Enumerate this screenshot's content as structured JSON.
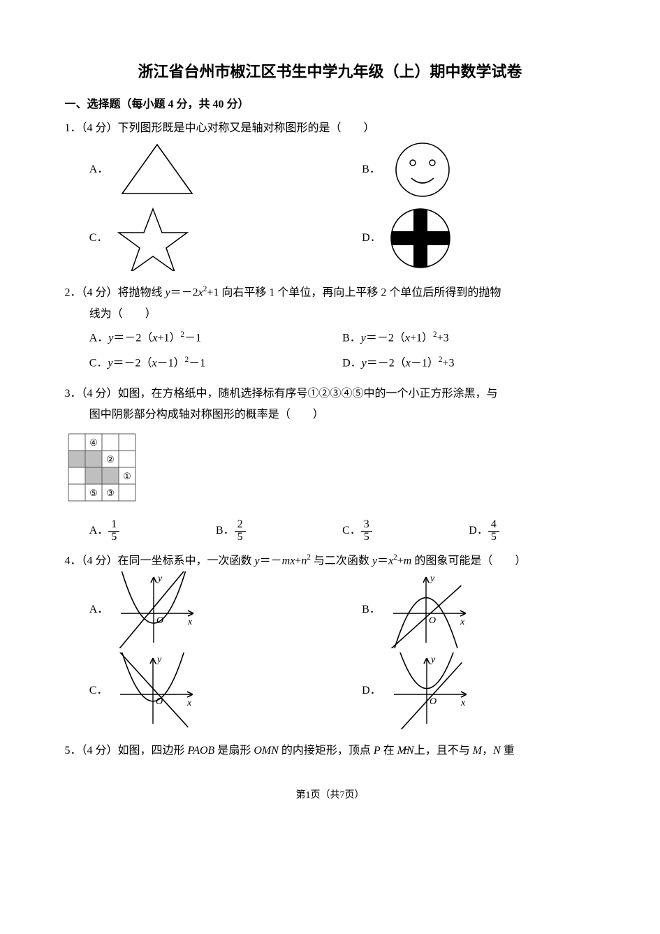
{
  "page": {
    "title": "浙江省台州市椒江区书生中学九年级（上）期中数学试卷",
    "section1_label": "一、选择题（每小题 4 分，共 40 分）",
    "footer": "第1页（共7页）"
  },
  "q1": {
    "stem": "1．（4 分）下列图形既是中心对称又是轴对称图形的是（　　）",
    "A": "A．",
    "B": "B．",
    "C": "C．",
    "D": "D．",
    "fig_size": 100,
    "figA": {
      "type": "triangle",
      "stroke": "#000"
    },
    "figB": {
      "type": "smiley",
      "stroke": "#000"
    },
    "figC": {
      "type": "star",
      "stroke": "#000"
    },
    "figD": {
      "type": "circle-cross",
      "stroke": "#000",
      "fill": "#000"
    }
  },
  "q2": {
    "stem_a": "2．（4 分）将抛物线 ",
    "stem_expr": "y＝－2x²+1",
    "stem_b": " 向右平移 1 个单位，再向上平移 2 个单位后所得到的抛物",
    "stem_c": "线为（　　）",
    "optA": "A．y＝－2（x+1）²－1",
    "optB": "B．y＝－2（x+1）²+3",
    "optC": "C．y＝－2（x－1）²－1",
    "optD": "D．y＝－2（x－1）²+3"
  },
  "q3": {
    "stem_a": "3．（4 分）如图，在方格纸中，随机选择标有序号①②③④⑤中的一个小正方形涂黑，与",
    "stem_b": "图中阴影部分构成轴对称图形的概率是（　　）",
    "grid": {
      "size": 4,
      "cell": 24,
      "stroke": "#5a5a5a",
      "shaded": [
        [
          1,
          0
        ],
        [
          1,
          1
        ],
        [
          2,
          1
        ],
        [
          2,
          2
        ]
      ],
      "shade_color": "#bfbfbf",
      "labels": [
        {
          "r": 0,
          "c": 1,
          "t": "④"
        },
        {
          "r": 1,
          "c": 2,
          "t": "②"
        },
        {
          "r": 2,
          "c": 3,
          "t": "①"
        },
        {
          "r": 3,
          "c": 1,
          "t": "⑤"
        },
        {
          "r": 3,
          "c": 2,
          "t": "③"
        }
      ]
    },
    "A": "A．",
    "B": "B．",
    "C": "C．",
    "D": "D．",
    "frac": {
      "A": {
        "n": "1",
        "d": "5"
      },
      "B": {
        "n": "2",
        "d": "5"
      },
      "C": {
        "n": "3",
        "d": "5"
      },
      "D": {
        "n": "4",
        "d": "5"
      }
    }
  },
  "q4": {
    "stem": "4．（4 分）在同一坐标系中，一次函数 y＝－mx+n² 与二次函数 y＝x²+m 的图象可能是（　　）",
    "A": "A．",
    "B": "B．",
    "C": "C．",
    "D": "D．",
    "fig_size": 110,
    "axis_labels": {
      "x": "x",
      "y": "y",
      "o": "O"
    },
    "figA": {
      "parab": "up",
      "vertex_y": -0.5,
      "line_slope": 1.2,
      "line_intercept": 0.3
    },
    "figB": {
      "parab": "down",
      "vertex_y": 0.8,
      "line_slope": 0.9,
      "line_intercept": -0.2
    },
    "figC": {
      "parab": "up",
      "vertex_y": -0.35,
      "line_slope": -1.1,
      "line_intercept": 0.3
    },
    "figD": {
      "parab": "up",
      "vertex_y": 0.3,
      "line_slope": 1.1,
      "line_intercept": -0.35
    }
  },
  "q5": {
    "stem_a": "5．（4 分）如图，四边形 ",
    "paob": "PAOB",
    "stem_b": " 是扇形 ",
    "omn": "OMN",
    "stem_c": " 的内接矩形，顶点 ",
    "p": "P",
    "stem_d": " 在 ",
    "arc": "M̂N̂",
    "stem_e": "上，且不与 ",
    "m": "M",
    "comma": "，",
    "n": "N",
    "stem_f": " 重"
  }
}
